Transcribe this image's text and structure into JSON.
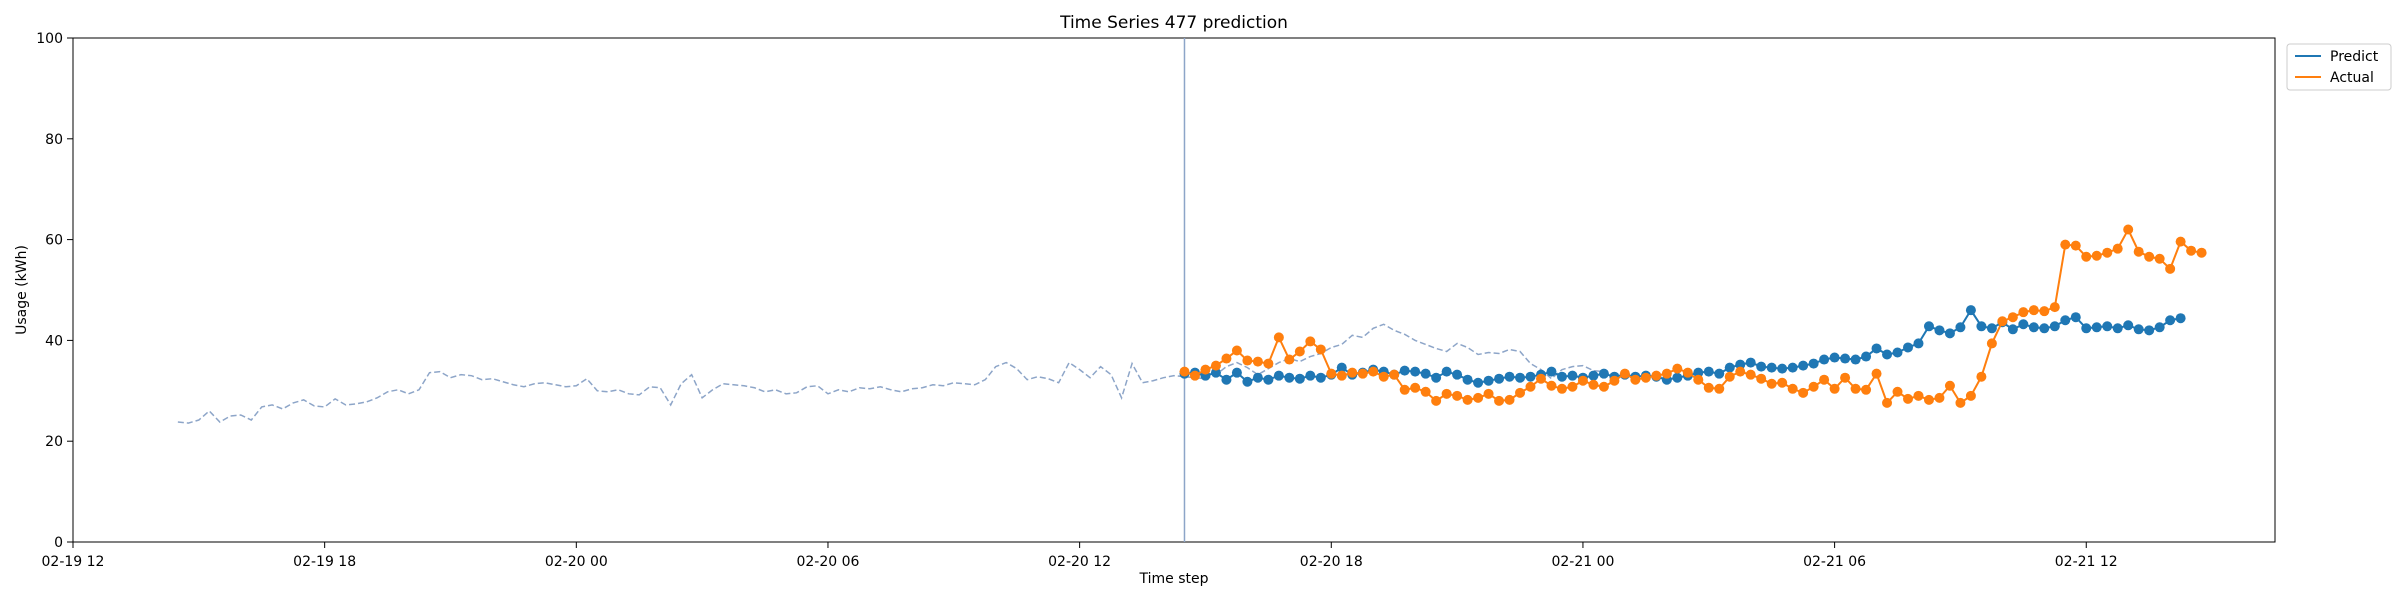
{
  "chart_data": {
    "type": "line",
    "title": "Time Series 477 prediction",
    "xlabel": "Time step",
    "ylabel": "Usage (kWh)",
    "ylim": [
      0,
      100
    ],
    "yticks": [
      0,
      20,
      40,
      60,
      80,
      100
    ],
    "xlim": [
      "02-19 12:00",
      "02-21 16:30"
    ],
    "xticks": [
      {
        "label": "02-19 12",
        "value": "02-19 12:00"
      },
      {
        "label": "02-19 18",
        "value": "02-19 18:00"
      },
      {
        "label": "02-20 00",
        "value": "02-20 00:00"
      },
      {
        "label": "02-20 06",
        "value": "02-20 06:00"
      },
      {
        "label": "02-20 12",
        "value": "02-20 12:00"
      },
      {
        "label": "02-20 18",
        "value": "02-20 18:00"
      },
      {
        "label": "02-21 00",
        "value": "02-21 00:00"
      },
      {
        "label": "02-21 06",
        "value": "02-21 06:00"
      },
      {
        "label": "02-21 12",
        "value": "02-21 12:00"
      }
    ],
    "grid": false,
    "legend_position": "outside-top-right",
    "forecast_start": "02-20 14:30",
    "history": {
      "start": "02-19 14:30",
      "step_minutes": 15,
      "color": "#8da5c8",
      "values": [
        23.8,
        23.6,
        24.2,
        26.0,
        23.8,
        25.0,
        25.2,
        24.2,
        26.8,
        27.2,
        26.4,
        27.6,
        28.2,
        27.0,
        26.8,
        28.4,
        27.2,
        27.4,
        27.8,
        28.6,
        29.8,
        30.2,
        29.4,
        30.2,
        33.6,
        33.8,
        32.6,
        33.2,
        33.0,
        32.2,
        32.4,
        31.8,
        31.2,
        30.8,
        31.4,
        31.6,
        31.2,
        30.8,
        31.0,
        32.4,
        30.0,
        29.8,
        30.2,
        29.4,
        29.2,
        30.8,
        30.6,
        27.2,
        31.4,
        33.2,
        28.6,
        30.2,
        31.4,
        31.2,
        31.0,
        30.6,
        29.8,
        30.2,
        29.4,
        29.6,
        30.8,
        31.0,
        29.4,
        30.2,
        29.8,
        30.6,
        30.4,
        30.8,
        30.2,
        29.8,
        30.4,
        30.6,
        31.2,
        31.0,
        31.6,
        31.4,
        31.2,
        32.2,
        34.8,
        35.6,
        34.4,
        32.2,
        32.8,
        32.4,
        31.6,
        35.6,
        34.2,
        32.6,
        34.8,
        33.2,
        28.6,
        35.4,
        31.6,
        32.0,
        32.6,
        33.0,
        32.8,
        32.6,
        32.4,
        33.2,
        34.8,
        35.6,
        34.6,
        33.2,
        34.4,
        35.6,
        36.4,
        35.8,
        36.8,
        37.4,
        38.6,
        39.2,
        41.0,
        40.6,
        42.4,
        43.2,
        42.0,
        41.2,
        40.0,
        39.2,
        38.4,
        37.8,
        39.4,
        38.6,
        37.2,
        37.6,
        37.4,
        38.2,
        37.8,
        35.4,
        34.2,
        32.4,
        34.2,
        34.8,
        35.0,
        34.0,
        33.8
      ]
    },
    "series": [
      {
        "name": "Predict",
        "color": "#1f77b4",
        "start": "02-20 14:30",
        "step_minutes": 15,
        "values": [
          33.4,
          33.6,
          33.0,
          33.6,
          32.2,
          33.6,
          31.8,
          32.6,
          32.2,
          33.0,
          32.6,
          32.4,
          33.0,
          32.6,
          33.2,
          34.6,
          33.2,
          33.6,
          34.2,
          33.8,
          33.2,
          34.0,
          33.8,
          33.4,
          32.6,
          33.8,
          33.2,
          32.2,
          31.6,
          32.0,
          32.4,
          32.8,
          32.6,
          32.8,
          33.2,
          33.8,
          32.8,
          33.0,
          32.6,
          33.0,
          33.4,
          32.8,
          33.2,
          32.8,
          33.0,
          32.8,
          32.2,
          32.6,
          33.0,
          33.6,
          33.8,
          33.4,
          34.6,
          35.2,
          35.6,
          34.8,
          34.6,
          34.4,
          34.6,
          35.0,
          35.4,
          36.2,
          36.6,
          36.4,
          36.2,
          36.8,
          38.4,
          37.2,
          37.6,
          38.6,
          39.4,
          42.8,
          42.0,
          41.4,
          42.6,
          46.0,
          42.8,
          42.4,
          43.6,
          42.2,
          43.2,
          42.6,
          42.4,
          42.8,
          44.0,
          44.6,
          42.4,
          42.6,
          42.8,
          42.4,
          43.0,
          42.2,
          42.0,
          42.6,
          44.0,
          44.4
        ]
      },
      {
        "name": "Actual",
        "color": "#ff7f0e",
        "start": "02-20 14:30",
        "step_minutes": 15,
        "values": [
          33.8,
          33.0,
          34.2,
          35.0,
          36.4,
          38.0,
          36.0,
          35.8,
          35.4,
          40.6,
          36.2,
          37.8,
          39.8,
          38.2,
          33.4,
          33.0,
          33.6,
          33.4,
          33.8,
          32.8,
          33.2,
          30.2,
          30.6,
          29.8,
          28.0,
          29.4,
          29.0,
          28.2,
          28.6,
          29.4,
          28.0,
          28.2,
          29.6,
          30.8,
          32.4,
          31.0,
          30.4,
          30.8,
          32.0,
          31.2,
          30.8,
          32.0,
          33.4,
          32.2,
          32.6,
          33.0,
          33.4,
          34.4,
          33.6,
          32.2,
          30.6,
          30.4,
          32.8,
          33.8,
          33.2,
          32.4,
          31.4,
          31.6,
          30.4,
          29.6,
          30.8,
          32.2,
          30.4,
          32.6,
          30.4,
          30.2,
          33.4,
          27.6,
          29.8,
          28.4,
          29.0,
          28.2,
          28.6,
          31.0,
          27.6,
          29.0,
          32.8,
          39.4,
          43.8,
          44.6,
          45.6,
          46.0,
          45.8,
          46.6,
          59.0,
          58.8,
          56.6,
          56.8,
          57.4,
          58.2,
          62.0,
          57.6,
          56.6,
          56.2,
          54.2,
          59.6,
          57.8,
          57.4
        ]
      }
    ]
  }
}
